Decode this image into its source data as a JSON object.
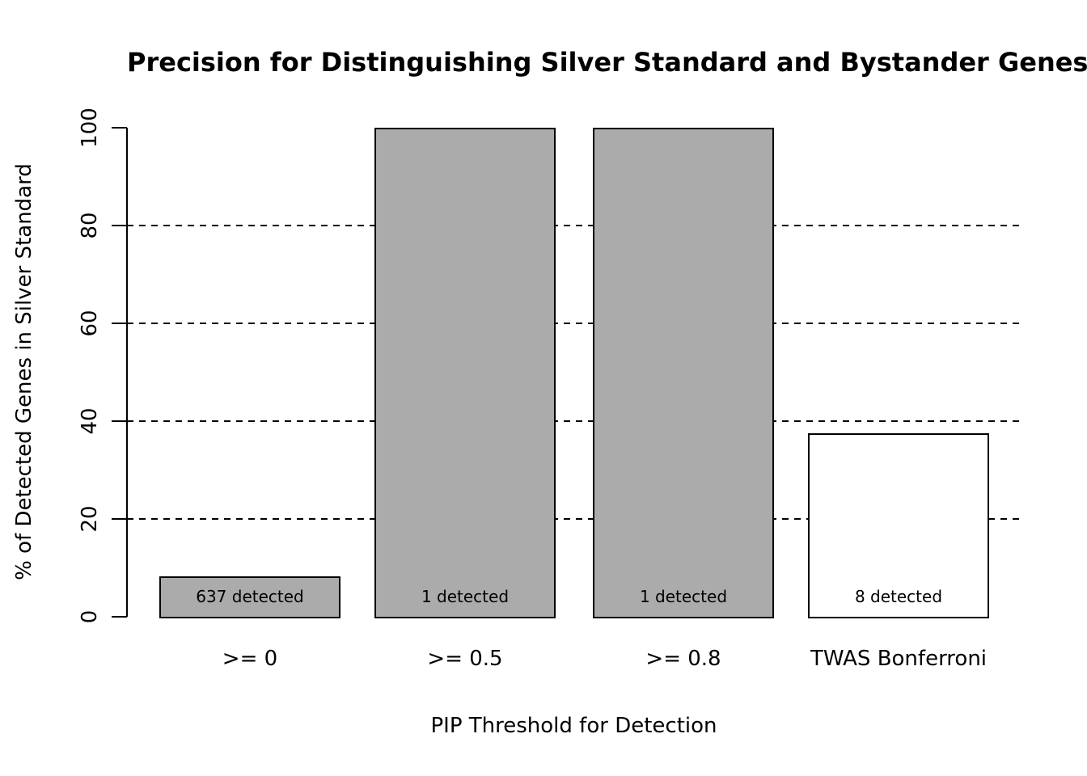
{
  "chart_data": {
    "type": "bar",
    "title": "Precision for Distinguishing Silver Standard and Bystander Genes",
    "xlabel": "PIP Threshold for Detection",
    "ylabel": "% of Detected Genes in Silver Standard",
    "categories": [
      ">= 0",
      ">= 0.5",
      ">= 0.8",
      "TWAS Bonferroni"
    ],
    "values": [
      8.3,
      100,
      100,
      37.5
    ],
    "bar_labels": [
      "637 detected",
      "1 detected",
      "1 detected",
      "8 detected"
    ],
    "bar_colors": [
      "#ABABAB",
      "#ABABAB",
      "#ABABAB",
      "#FFFFFF"
    ],
    "bar_border_color": "#000000",
    "ylim": [
      0,
      100
    ],
    "yticks": [
      0,
      20,
      40,
      60,
      80,
      100
    ],
    "gridlines": [
      20,
      40,
      60,
      80
    ],
    "gridline_style": "dashed",
    "grid_on": true,
    "legend": "none",
    "background_color": "#FFFFFF",
    "text_color": "#000000"
  }
}
